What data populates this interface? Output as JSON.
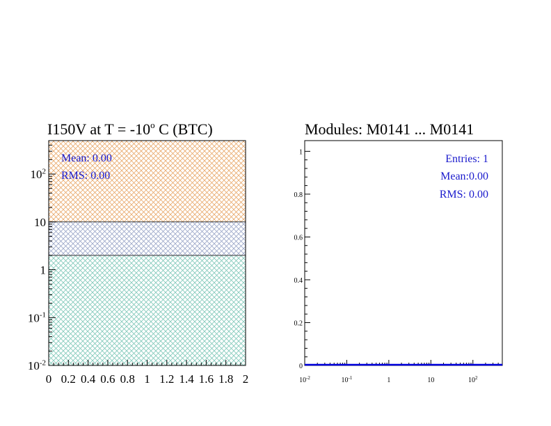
{
  "charts": [
    {
      "id": "left",
      "type": "area",
      "title_main": "I150V at T =  -10",
      "title_sup": "o",
      "title_tail": " C (BTC)",
      "x_ticks": [
        "0",
        "0.2",
        "0.4",
        "0.6",
        "0.8",
        "1",
        "1.2",
        "1.4",
        "1.6",
        "1.8",
        "2"
      ],
      "y_ticks": [
        {
          "base": "10",
          "exp": "-2"
        },
        {
          "base": "10",
          "exp": "-1"
        },
        {
          "base": "1",
          "exp": ""
        },
        {
          "base": "10",
          "exp": ""
        },
        {
          "base": "10",
          "exp": "2"
        }
      ],
      "stats": {
        "mean": "Mean: 0.00",
        "rms": "RMS:  0.00"
      },
      "stat_color": "#1a1acc"
    },
    {
      "id": "right",
      "type": "line",
      "title": "Modules:  M0141 ... M0141",
      "x_ticks": [
        {
          "base": "10",
          "exp": "-2"
        },
        {
          "base": "10",
          "exp": "-1"
        },
        {
          "base": "1",
          "exp": ""
        },
        {
          "base": "10",
          "exp": ""
        },
        {
          "base": "10",
          "exp": "2"
        }
      ],
      "y_ticks": [
        "0",
        "0.2",
        "0.4",
        "0.6",
        "0.8",
        "1"
      ],
      "stats": {
        "entries": "Entries:   1",
        "mean": "Mean:0.00",
        "rms": "RMS: 0.00"
      },
      "stat_color": "#1a1acc",
      "line_color": "#0000dd"
    }
  ],
  "chart_data": [
    {
      "type": "area",
      "title": "I150V at T =  -10o C (BTC)",
      "x_range": [
        0,
        2
      ],
      "y_scale": "log",
      "y_range": [
        0.01,
        500
      ],
      "bands": [
        {
          "from": 0.01,
          "to": 2,
          "color": "#7fc8b8"
        },
        {
          "from": 2,
          "to": 10,
          "color": "#9aa6c8"
        },
        {
          "from": 10,
          "to": 500,
          "color": "#e8a86a"
        }
      ],
      "stats": {
        "Mean": 0.0,
        "RMS": 0.0
      }
    },
    {
      "type": "line",
      "title": "Modules:  M0141 ... M0141",
      "x_scale": "log",
      "x_range": [
        0.01,
        500
      ],
      "y_range": [
        0,
        1.05
      ],
      "series": [
        {
          "x": [
            0.01,
            500
          ],
          "y": [
            0,
            0
          ]
        }
      ],
      "stats": {
        "Entries": 1,
        "Mean": 0.0,
        "RMS": 0.0
      }
    }
  ]
}
